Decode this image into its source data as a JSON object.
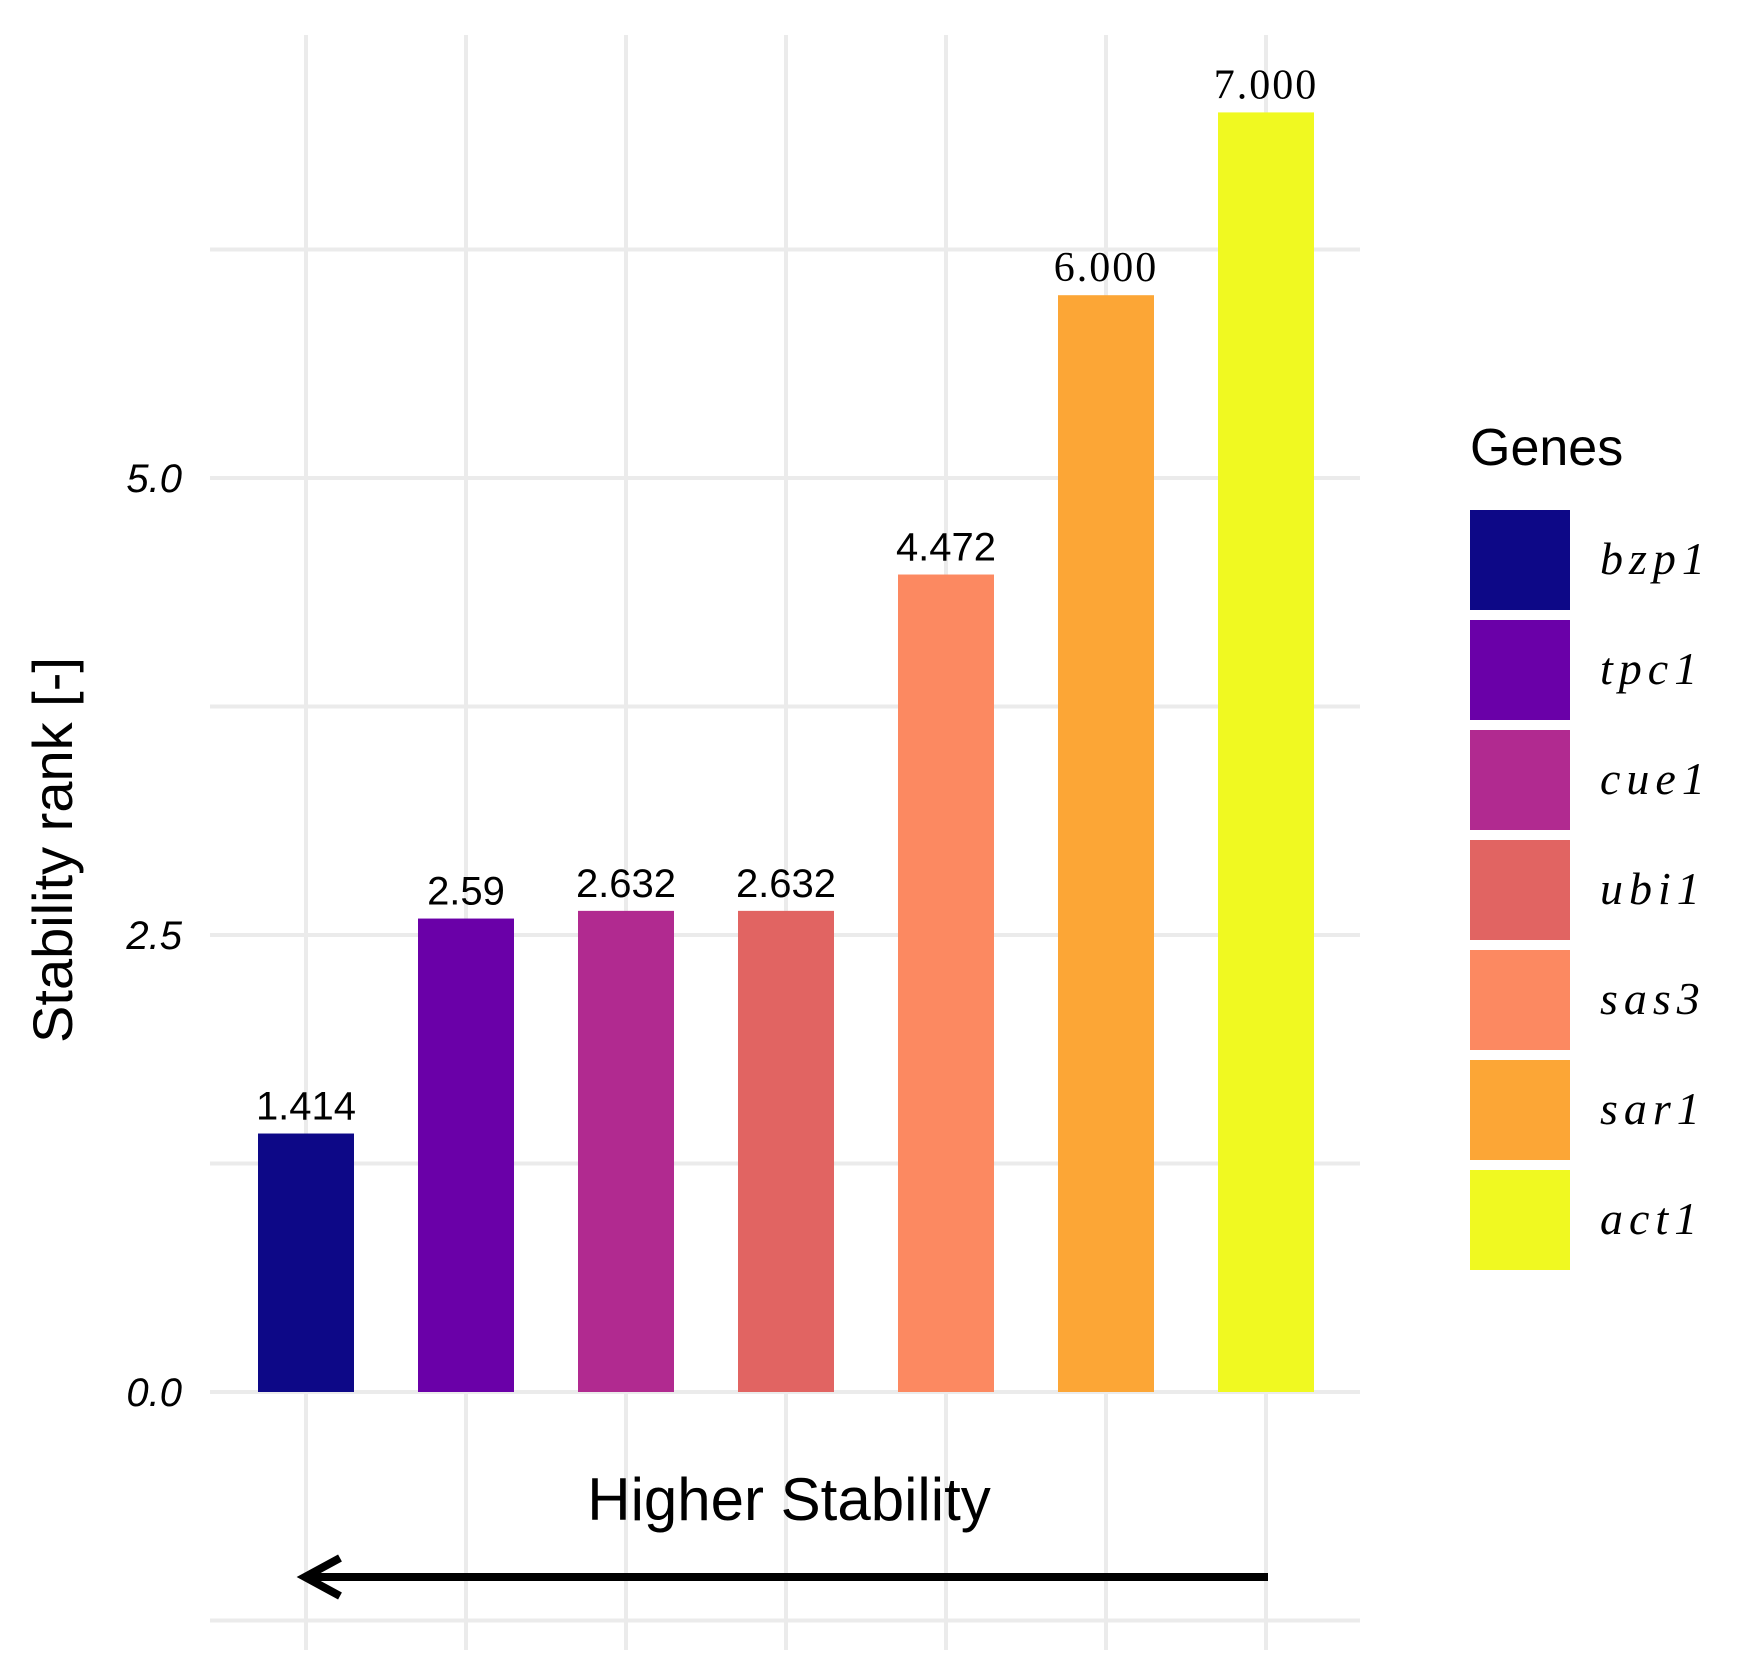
{
  "chart_data": {
    "type": "bar",
    "categories": [
      "bzp1",
      "tpc1",
      "cue1",
      "ubi1",
      "sas3",
      "sar1",
      "act1"
    ],
    "values": [
      1.414,
      2.59,
      2.632,
      2.632,
      4.472,
      6.0,
      7.0
    ],
    "data_labels": [
      "1.414",
      "2.59",
      "2.632",
      "2.632",
      "4.472",
      "6.000",
      "7.000"
    ],
    "colors": [
      "#0D0887",
      "#6A00A8",
      "#B12A90",
      "#E16462",
      "#FC8961",
      "#FCA636",
      "#F0F921"
    ],
    "title": "",
    "xlabel": "",
    "ylabel": "Stability rank [-]",
    "yticks": [
      "0.0",
      "2.5",
      "5.0"
    ],
    "ytick_values": [
      0,
      2.5,
      5.0
    ],
    "ylim": [
      -1.25,
      7.25
    ],
    "grid": true,
    "legend": {
      "title": "Genes",
      "position": "right",
      "items": [
        "bzp1",
        "tpc1",
        "cue1",
        "ubi1",
        "sas3",
        "sar1",
        "act1"
      ]
    },
    "annotation": {
      "text": "Higher Stability",
      "arrow_from_category": "act1",
      "arrow_to_category": "bzp1"
    }
  }
}
